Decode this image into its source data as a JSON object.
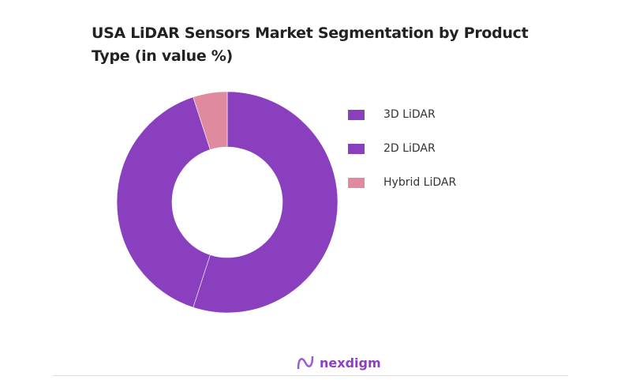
{
  "chart_data": {
    "type": "pie",
    "variant": "donut",
    "title": "USA LiDAR Sensors Market Segmentation by Product Type (in value %)",
    "categories": [
      "3D LiDAR",
      "2D LiDAR",
      "Hybrid LiDAR"
    ],
    "values": [
      55,
      40,
      5
    ],
    "colors": [
      "#8A3FBF",
      "#8A3FBF",
      "#E08AA0"
    ],
    "legend": "right"
  },
  "brand": {
    "name": "nexdigm",
    "color": "#8b3fc4"
  }
}
